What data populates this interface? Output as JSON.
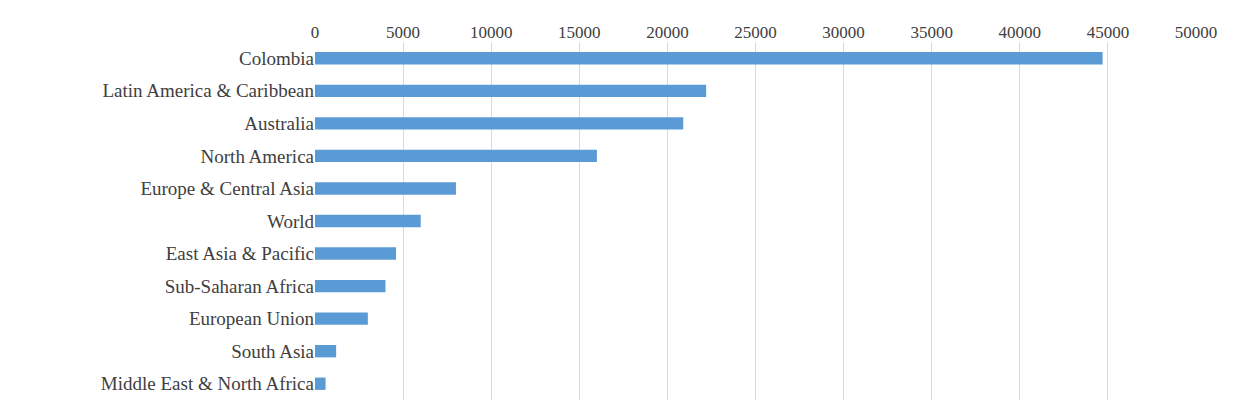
{
  "chart_data": {
    "type": "bar",
    "orientation": "horizontal",
    "categories": [
      "Colombia",
      "Latin America & Caribbean",
      "Australia",
      "North America",
      "Europe & Central Asia",
      "World",
      "East Asia & Pacific",
      "Sub-Saharan Africa",
      "European Union",
      "South Asia",
      "Middle East & North Africa"
    ],
    "values": [
      44700,
      22200,
      20900,
      16000,
      8000,
      6000,
      4600,
      4000,
      3000,
      1200,
      600
    ],
    "color": "#5b9bd5",
    "xlim": [
      0,
      50000
    ],
    "xticks": [
      0,
      5000,
      10000,
      15000,
      20000,
      25000,
      30000,
      35000,
      40000,
      45000,
      50000
    ],
    "grid": true
  }
}
